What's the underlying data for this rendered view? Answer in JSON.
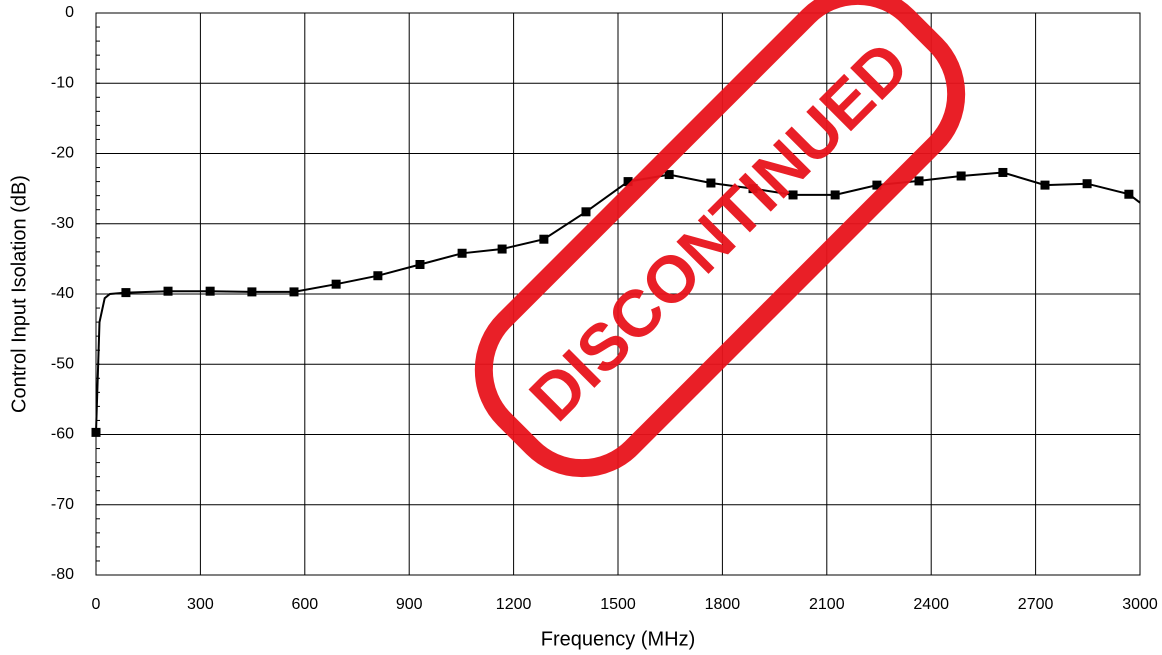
{
  "chart_data": {
    "type": "line",
    "x_label": "Frequency (MHz)",
    "y_label": "Control Input Isolation (dB)",
    "annotation": "DISCONTINUED",
    "annotation_color": "#e8141c",
    "xlim": [
      0,
      3000
    ],
    "xticks": [
      0,
      300,
      600,
      900,
      1200,
      1500,
      1800,
      2100,
      2400,
      2700,
      3000
    ],
    "ylim": [
      -80,
      0
    ],
    "yticks": [
      0,
      -10,
      -20,
      -30,
      -40,
      -50,
      -60,
      -70,
      -80
    ],
    "grid": true,
    "series": [
      {
        "color": "#000000",
        "marker": false,
        "x": [
          0,
          10,
          25,
          40,
          86,
          207,
          328,
          448,
          569,
          690,
          810,
          931,
          1052,
          1167,
          1287,
          1408,
          1529,
          1647,
          1767,
          1888,
          2003,
          2124,
          2244,
          2365,
          2486,
          2606,
          2727,
          2848,
          2968,
          3000
        ],
        "values": [
          -59.7,
          -44,
          -40.6,
          -40,
          -39.8,
          -39.6,
          -39.6,
          -39.7,
          -39.7,
          -38.6,
          -37.4,
          -35.8,
          -34.2,
          -33.6,
          -32.2,
          -28.3,
          -24.0,
          -23.0,
          -24.2,
          -25.0,
          -25.9,
          -25.9,
          -24.5,
          -23.9,
          -23.2,
          -22.7,
          -24.5,
          -24.3,
          -25.8,
          -27
        ]
      },
      {
        "color": "#000000",
        "marker": true,
        "x": [
          0,
          86,
          207,
          328,
          448,
          569,
          690,
          810,
          931,
          1052,
          1167,
          1287,
          1408,
          1529,
          1647,
          1767,
          1888,
          2003,
          2124,
          2244,
          2365,
          2486,
          2606,
          2727,
          2848,
          2968
        ],
        "values": [
          -59.7,
          -39.8,
          -39.6,
          -39.6,
          -39.7,
          -39.7,
          -38.6,
          -37.4,
          -35.8,
          -34.2,
          -33.6,
          -32.2,
          -28.3,
          -24.0,
          -23.0,
          -24.2,
          -25.0,
          -25.9,
          -25.9,
          -24.5,
          -23.9,
          -23.2,
          -22.7,
          -24.5,
          -24.3,
          -25.8
        ]
      }
    ]
  }
}
